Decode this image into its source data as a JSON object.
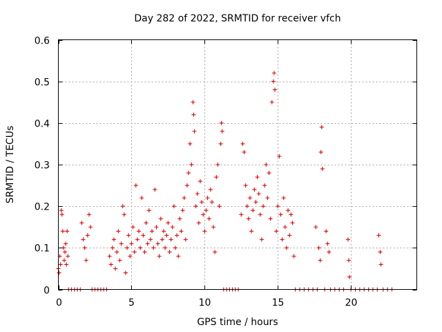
{
  "chart_data": {
    "type": "scatter",
    "title": "Day 282 of 2022, SRMTID for receiver vfch",
    "xlabel": "GPS time / hours",
    "ylabel": "SRMTID / TECUs",
    "xlim": [
      0,
      24.5
    ],
    "ylim": [
      0,
      0.6
    ],
    "xticks": [
      0,
      5,
      10,
      15,
      20
    ],
    "xtick_labels": [
      "0",
      "5",
      "10",
      "15",
      "20"
    ],
    "yticks": [
      0,
      0.1,
      0.2,
      0.3,
      0.4,
      0.5,
      0.6
    ],
    "ytick_labels": [
      "0",
      "0.1",
      "0.2",
      "0.3",
      "0.4",
      "0.5",
      "0.6"
    ],
    "grid": true,
    "marker": "+",
    "color": "#e00000",
    "series": [
      {
        "name": "SRMTID",
        "points": [
          [
            0.0,
            0.05
          ],
          [
            0.05,
            0.04
          ],
          [
            0.1,
            0.08
          ],
          [
            0.15,
            0.06
          ],
          [
            0.2,
            0.19
          ],
          [
            0.25,
            0.18
          ],
          [
            0.3,
            0.14
          ],
          [
            0.35,
            0.1
          ],
          [
            0.4,
            0.07
          ],
          [
            0.45,
            0.09
          ],
          [
            0.5,
            0.11
          ],
          [
            0.55,
            0.06
          ],
          [
            0.6,
            0.14
          ],
          [
            0.65,
            0.08
          ],
          [
            0.7,
            0.0
          ],
          [
            0.9,
            0.0
          ],
          [
            1.1,
            0.0
          ],
          [
            1.3,
            0.0
          ],
          [
            1.5,
            0.0
          ],
          [
            1.6,
            0.16
          ],
          [
            1.7,
            0.12
          ],
          [
            1.8,
            0.1
          ],
          [
            1.9,
            0.07
          ],
          [
            2.0,
            0.13
          ],
          [
            2.1,
            0.18
          ],
          [
            2.2,
            0.15
          ],
          [
            2.3,
            0.0
          ],
          [
            2.5,
            0.0
          ],
          [
            2.7,
            0.0
          ],
          [
            2.9,
            0.0
          ],
          [
            3.1,
            0.0
          ],
          [
            3.3,
            0.0
          ],
          [
            3.5,
            0.08
          ],
          [
            3.6,
            0.06
          ],
          [
            3.7,
            0.1
          ],
          [
            3.8,
            0.12
          ],
          [
            3.9,
            0.05
          ],
          [
            4.0,
            0.09
          ],
          [
            4.1,
            0.14
          ],
          [
            4.2,
            0.07
          ],
          [
            4.3,
            0.11
          ],
          [
            4.4,
            0.2
          ],
          [
            4.5,
            0.18
          ],
          [
            4.6,
            0.04
          ],
          [
            4.7,
            0.1
          ],
          [
            4.8,
            0.13
          ],
          [
            4.9,
            0.08
          ],
          [
            5.0,
            0.11
          ],
          [
            5.1,
            0.15
          ],
          [
            5.2,
            0.09
          ],
          [
            5.3,
            0.25
          ],
          [
            5.4,
            0.12
          ],
          [
            5.5,
            0.14
          ],
          [
            5.6,
            0.1
          ],
          [
            5.7,
            0.22
          ],
          [
            5.8,
            0.13
          ],
          [
            5.9,
            0.09
          ],
          [
            6.0,
            0.16
          ],
          [
            6.1,
            0.11
          ],
          [
            6.2,
            0.19
          ],
          [
            6.3,
            0.12
          ],
          [
            6.4,
            0.14
          ],
          [
            6.5,
            0.1
          ],
          [
            6.6,
            0.24
          ],
          [
            6.7,
            0.15
          ],
          [
            6.8,
            0.11
          ],
          [
            6.9,
            0.08
          ],
          [
            7.0,
            0.17
          ],
          [
            7.1,
            0.12
          ],
          [
            7.2,
            0.14
          ],
          [
            7.3,
            0.1
          ],
          [
            7.4,
            0.13
          ],
          [
            7.5,
            0.16
          ],
          [
            7.6,
            0.09
          ],
          [
            7.7,
            0.12
          ],
          [
            7.8,
            0.15
          ],
          [
            7.9,
            0.2
          ],
          [
            8.0,
            0.1
          ],
          [
            8.1,
            0.13
          ],
          [
            8.2,
            0.08
          ],
          [
            8.3,
            0.17
          ],
          [
            8.4,
            0.14
          ],
          [
            8.5,
            0.19
          ],
          [
            8.6,
            0.22
          ],
          [
            8.7,
            0.12
          ],
          [
            8.8,
            0.25
          ],
          [
            8.9,
            0.28
          ],
          [
            9.0,
            0.35
          ],
          [
            9.1,
            0.3
          ],
          [
            9.2,
            0.45
          ],
          [
            9.25,
            0.42
          ],
          [
            9.3,
            0.38
          ],
          [
            9.4,
            0.2
          ],
          [
            9.5,
            0.23
          ],
          [
            9.6,
            0.16
          ],
          [
            9.7,
            0.26
          ],
          [
            9.8,
            0.21
          ],
          [
            9.9,
            0.18
          ],
          [
            10.0,
            0.14
          ],
          [
            10.1,
            0.19
          ],
          [
            10.2,
            0.22
          ],
          [
            10.3,
            0.17
          ],
          [
            10.4,
            0.24
          ],
          [
            10.5,
            0.21
          ],
          [
            10.6,
            0.15
          ],
          [
            10.7,
            0.09
          ],
          [
            10.8,
            0.27
          ],
          [
            10.9,
            0.3
          ],
          [
            11.0,
            0.2
          ],
          [
            11.1,
            0.35
          ],
          [
            11.15,
            0.4
          ],
          [
            11.2,
            0.38
          ],
          [
            11.3,
            0.0
          ],
          [
            11.5,
            0.0
          ],
          [
            11.7,
            0.0
          ],
          [
            11.9,
            0.0
          ],
          [
            12.1,
            0.0
          ],
          [
            12.3,
            0.0
          ],
          [
            12.5,
            0.18
          ],
          [
            12.6,
            0.35
          ],
          [
            12.7,
            0.33
          ],
          [
            12.8,
            0.25
          ],
          [
            12.9,
            0.2
          ],
          [
            13.0,
            0.17
          ],
          [
            13.1,
            0.22
          ],
          [
            13.2,
            0.14
          ],
          [
            13.3,
            0.19
          ],
          [
            13.4,
            0.24
          ],
          [
            13.5,
            0.21
          ],
          [
            13.6,
            0.27
          ],
          [
            13.7,
            0.23
          ],
          [
            13.8,
            0.18
          ],
          [
            13.9,
            0.12
          ],
          [
            14.0,
            0.2
          ],
          [
            14.1,
            0.25
          ],
          [
            14.2,
            0.3
          ],
          [
            14.3,
            0.22
          ],
          [
            14.4,
            0.28
          ],
          [
            14.5,
            0.17
          ],
          [
            14.6,
            0.45
          ],
          [
            14.7,
            0.5
          ],
          [
            14.75,
            0.52
          ],
          [
            14.8,
            0.48
          ],
          [
            14.9,
            0.14
          ],
          [
            15.0,
            0.2
          ],
          [
            15.1,
            0.32
          ],
          [
            15.2,
            0.18
          ],
          [
            15.3,
            0.12
          ],
          [
            15.4,
            0.22
          ],
          [
            15.5,
            0.15
          ],
          [
            15.6,
            0.1
          ],
          [
            15.7,
            0.19
          ],
          [
            15.8,
            0.13
          ],
          [
            15.9,
            0.18
          ],
          [
            16.0,
            0.16
          ],
          [
            16.1,
            0.08
          ],
          [
            16.2,
            0.0
          ],
          [
            16.5,
            0.0
          ],
          [
            16.8,
            0.0
          ],
          [
            17.1,
            0.0
          ],
          [
            17.4,
            0.0
          ],
          [
            17.6,
            0.15
          ],
          [
            17.7,
            0.0
          ],
          [
            17.8,
            0.1
          ],
          [
            17.9,
            0.07
          ],
          [
            17.95,
            0.33
          ],
          [
            18.0,
            0.39
          ],
          [
            18.05,
            0.29
          ],
          [
            18.2,
            0.0
          ],
          [
            18.3,
            0.14
          ],
          [
            18.4,
            0.11
          ],
          [
            18.5,
            0.09
          ],
          [
            18.6,
            0.0
          ],
          [
            18.9,
            0.0
          ],
          [
            19.2,
            0.0
          ],
          [
            19.5,
            0.0
          ],
          [
            19.8,
            0.12
          ],
          [
            19.85,
            0.07
          ],
          [
            19.9,
            0.03
          ],
          [
            20.0,
            0.0
          ],
          [
            20.3,
            0.0
          ],
          [
            20.6,
            0.0
          ],
          [
            20.9,
            0.0
          ],
          [
            21.2,
            0.0
          ],
          [
            21.5,
            0.0
          ],
          [
            21.8,
            0.0
          ],
          [
            21.9,
            0.13
          ],
          [
            22.0,
            0.09
          ],
          [
            22.05,
            0.06
          ],
          [
            22.2,
            0.0
          ],
          [
            22.5,
            0.0
          ],
          [
            22.8,
            0.0
          ]
        ]
      }
    ]
  }
}
